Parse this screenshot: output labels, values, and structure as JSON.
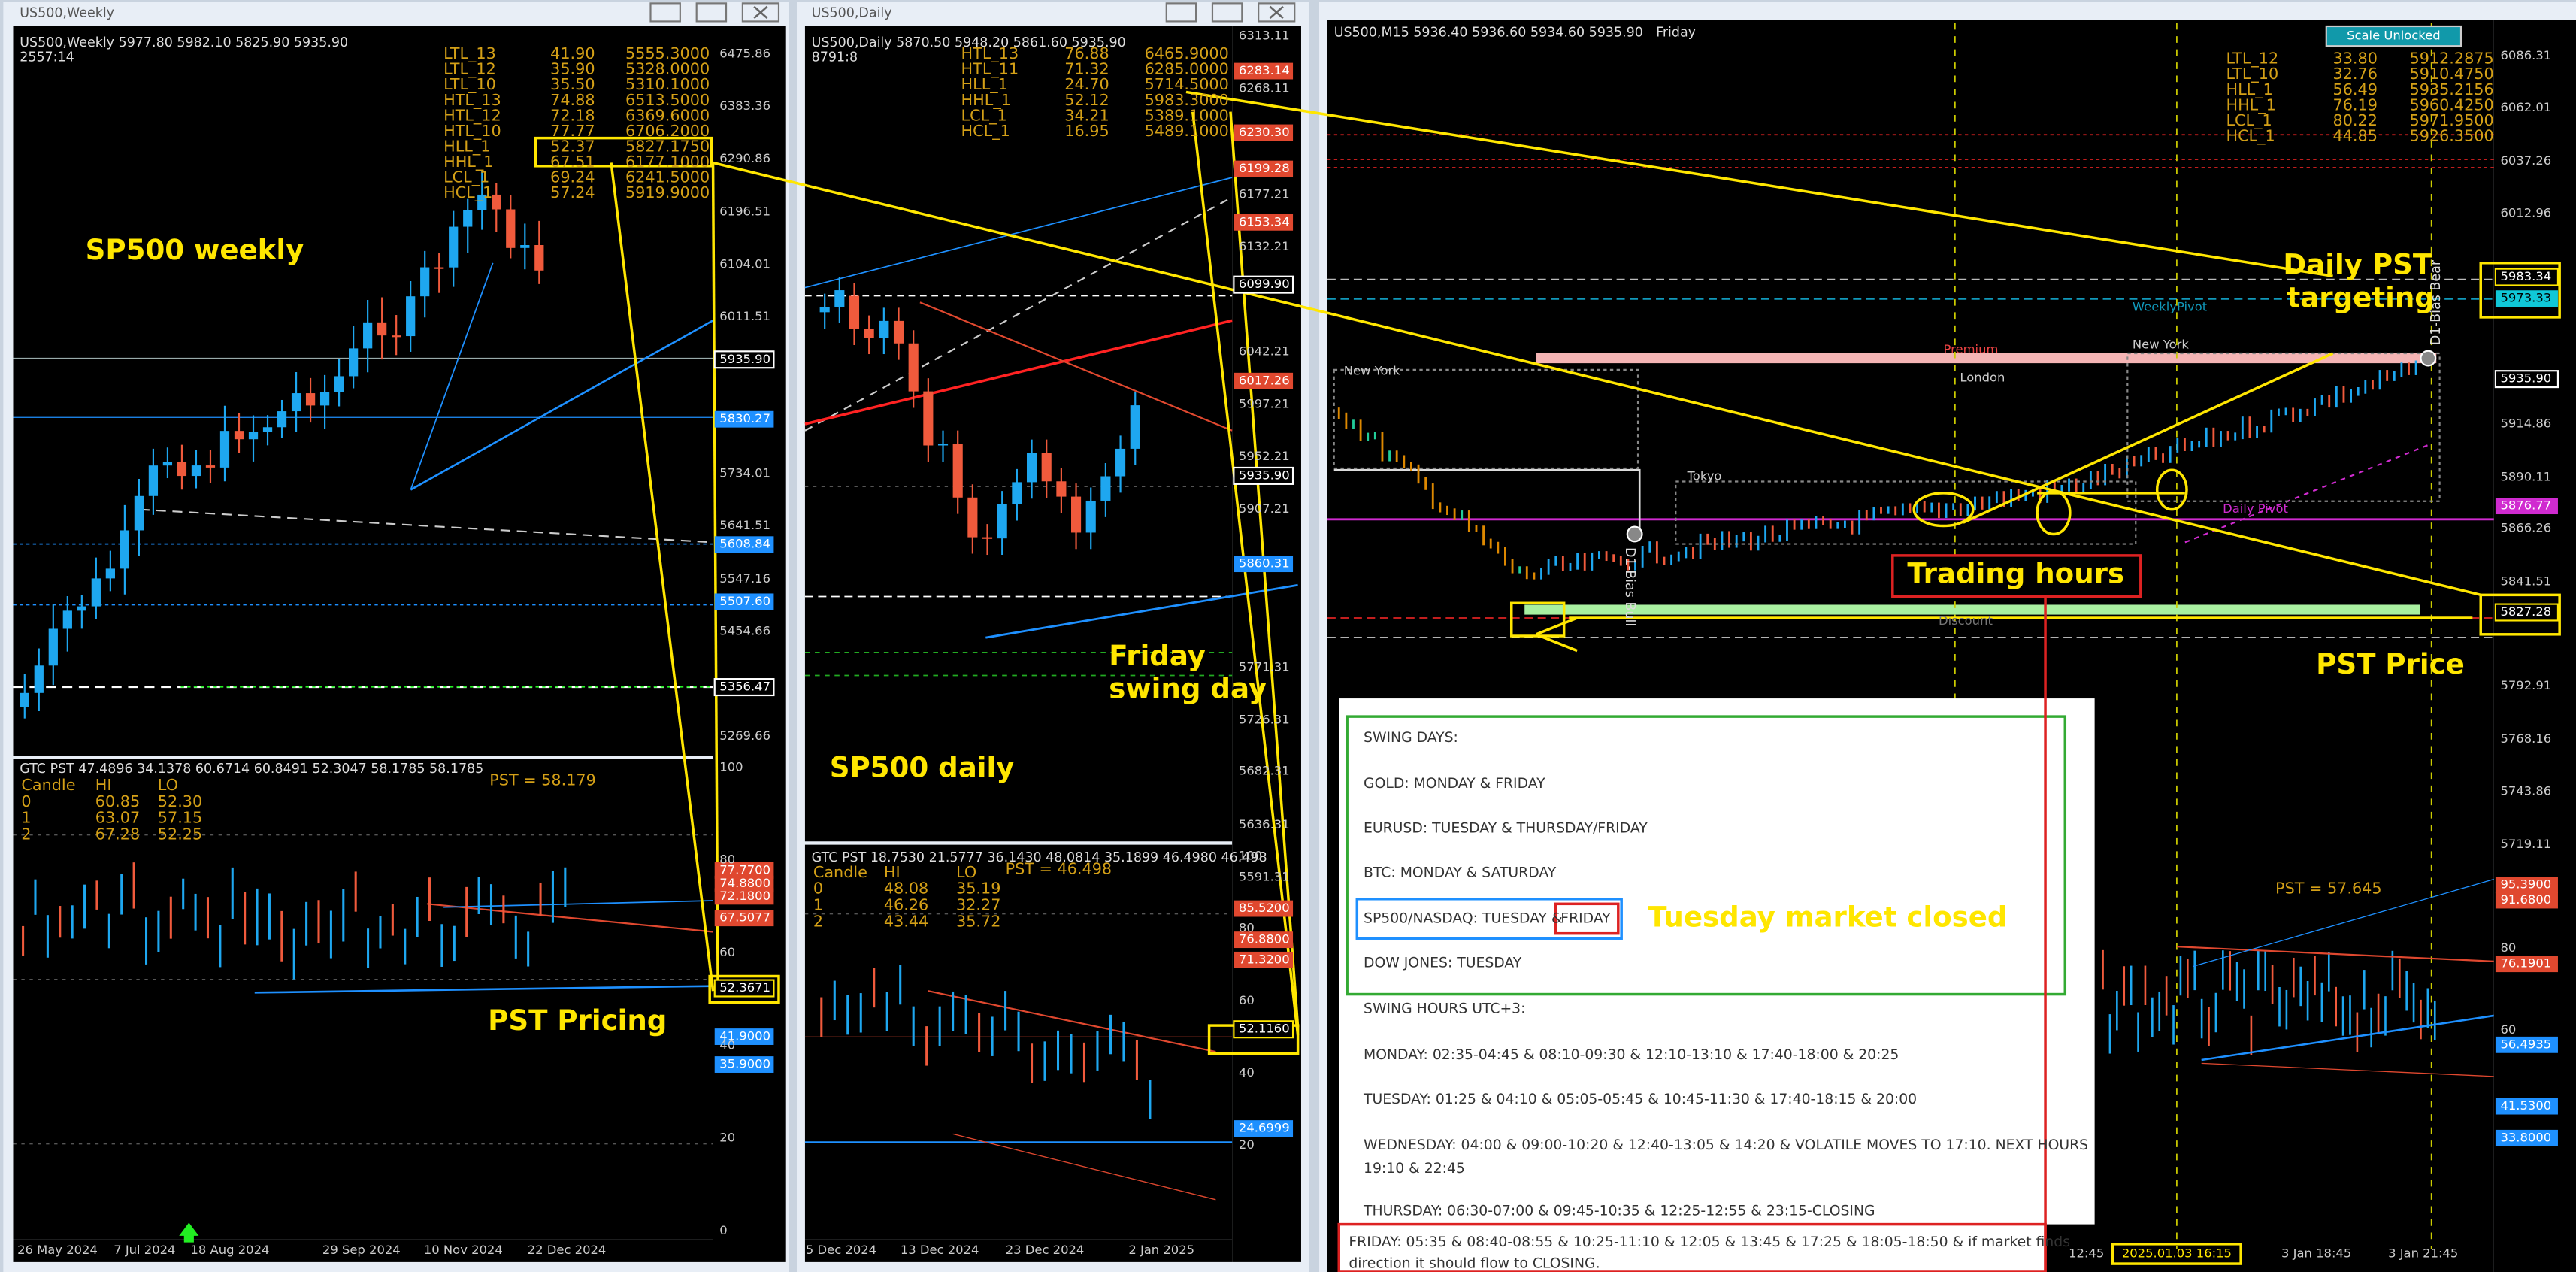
{
  "weekly": {
    "window_title": "US500,Weekly",
    "header": "US500,Weekly 5977.80 5982.10 5825.90 5935.90",
    "timer": "2557:14",
    "levels": [
      [
        "LTL_13",
        "41.90",
        "5555.3000"
      ],
      [
        "LTL_12",
        "35.90",
        "5328.0000"
      ],
      [
        "LTL_10",
        "35.50",
        "5310.1000"
      ],
      [
        "HTL_13",
        "74.88",
        "6513.5000"
      ],
      [
        "HTL_12",
        "72.18",
        "6369.6000"
      ],
      [
        "HTL_10",
        "77.77",
        "6706.2000"
      ],
      [
        "HLL_1",
        "52.37",
        "5827.1750"
      ],
      [
        "HHL_1",
        "67.51",
        "6177.1000"
      ],
      [
        "LCL_1",
        "69.24",
        "6241.5000"
      ],
      [
        "HCL_1",
        "57.24",
        "5919.9000"
      ]
    ],
    "label": "SP500 weekly",
    "price_axis": [
      {
        "text": "6475.86",
        "style": "plain"
      },
      {
        "text": "6383.36",
        "style": "plain"
      },
      {
        "text": "6290.86",
        "style": "plain"
      },
      {
        "text": "6196.51",
        "style": "plain"
      },
      {
        "text": "6104.01",
        "style": "plain"
      },
      {
        "text": "6011.51",
        "style": "plain"
      },
      {
        "text": "5935.90",
        "style": "box"
      },
      {
        "text": "5830.27",
        "style": "blue"
      },
      {
        "text": "5734.01",
        "style": "plain"
      },
      {
        "text": "5641.51",
        "style": "plain"
      },
      {
        "text": "5608.84",
        "style": "blue"
      },
      {
        "text": "5547.16",
        "style": "plain"
      },
      {
        "text": "5507.60",
        "style": "blue"
      },
      {
        "text": "5454.66",
        "style": "plain"
      },
      {
        "text": "5356.47",
        "style": "box"
      },
      {
        "text": "5269.66",
        "style": "plain"
      }
    ],
    "indicator_header": "GTC PST 47.4896 34.1378 60.6714 60.8491 52.3047 58.1785 58.1785",
    "pst": "PST = 58.179",
    "candle_table": [
      [
        "Candle",
        "HI",
        "LO"
      ],
      [
        "0",
        "60.85",
        "52.30"
      ],
      [
        "1",
        "63.07",
        "57.15"
      ],
      [
        "2",
        "67.28",
        "52.25"
      ]
    ],
    "indicator_axis": [
      {
        "text": "100",
        "style": "plain"
      },
      {
        "text": "77.7700",
        "style": "red"
      },
      {
        "text": "74.8800",
        "style": "red"
      },
      {
        "text": "72.1800",
        "style": "red"
      },
      {
        "text": "67.5077",
        "style": "red"
      },
      {
        "text": "80",
        "style": "plain"
      },
      {
        "text": "60",
        "style": "plain"
      },
      {
        "text": "52.3671",
        "style": "yellow"
      },
      {
        "text": "41.9000",
        "style": "blue"
      },
      {
        "text": "35.9000",
        "style": "blue"
      },
      {
        "text": "40",
        "style": "plain"
      },
      {
        "text": "20",
        "style": "plain"
      },
      {
        "text": "0",
        "style": "plain"
      }
    ],
    "pst_label": "PST Pricing",
    "dates": [
      "26 May 2024",
      "7 Jul 2024",
      "18 Aug 2024",
      "29 Sep 2024",
      "10 Nov 2024",
      "22 Dec 2024"
    ]
  },
  "daily": {
    "window_title": "US500,Daily",
    "header": "US500,Daily 5870.50 5948.20 5861.60 5935.90",
    "timer": "8791:8",
    "levels": [
      [
        "HTL_13",
        "76.88",
        "6465.9000"
      ],
      [
        "HTL_11",
        "71.32",
        "6285.0000"
      ],
      [
        "HLL_1",
        "24.70",
        "5714.5000"
      ],
      [
        "HHL_1",
        "52.12",
        "5983.3000"
      ],
      [
        "LCL_1",
        "34.21",
        "5389.1000"
      ],
      [
        "HCL_1",
        "16.95",
        "5489.1000"
      ]
    ],
    "label": "SP500 daily",
    "swing_label": [
      "Friday",
      "swing day"
    ],
    "price_axis": [
      {
        "text": "6313.11",
        "style": "plain"
      },
      {
        "text": "6283.14",
        "style": "red"
      },
      {
        "text": "6268.11",
        "style": "plain"
      },
      {
        "text": "6230.30",
        "style": "red"
      },
      {
        "text": "6199.28",
        "style": "red"
      },
      {
        "text": "6177.21",
        "style": "plain"
      },
      {
        "text": "6153.34",
        "style": "red"
      },
      {
        "text": "6132.21",
        "style": "plain"
      },
      {
        "text": "6099.90",
        "style": "box"
      },
      {
        "text": "6042.21",
        "style": "plain"
      },
      {
        "text": "6017.26",
        "style": "red"
      },
      {
        "text": "5997.21",
        "style": "plain"
      },
      {
        "text": "5952.21",
        "style": "plain"
      },
      {
        "text": "5935.90",
        "style": "box"
      },
      {
        "text": "5907.21",
        "style": "plain"
      },
      {
        "text": "5860.31",
        "style": "blue"
      },
      {
        "text": "5771.31",
        "style": "plain"
      },
      {
        "text": "5726.31",
        "style": "plain"
      },
      {
        "text": "5682.31",
        "style": "plain"
      },
      {
        "text": "5636.31",
        "style": "plain"
      },
      {
        "text": "5591.31",
        "style": "plain"
      }
    ],
    "indicator_header": "GTC PST 18.7530 21.5777 36.1430 48.0814 35.1899 46.4980 46.498",
    "pst": "PST = 46.498",
    "candle_table": [
      [
        "Candle",
        "HI",
        "LO"
      ],
      [
        "0",
        "48.08",
        "35.19"
      ],
      [
        "1",
        "46.26",
        "32.27"
      ],
      [
        "2",
        "43.44",
        "35.72"
      ]
    ],
    "indicator_axis": [
      {
        "text": "100",
        "style": "plain"
      },
      {
        "text": "85.5200",
        "style": "red"
      },
      {
        "text": "80",
        "style": "plain"
      },
      {
        "text": "76.8800",
        "style": "red"
      },
      {
        "text": "71.3200",
        "style": "red"
      },
      {
        "text": "60",
        "style": "plain"
      },
      {
        "text": "52.1160",
        "style": "yellow"
      },
      {
        "text": "40",
        "style": "plain"
      },
      {
        "text": "24.6999",
        "style": "blue"
      },
      {
        "text": "20",
        "style": "plain"
      }
    ],
    "dates": [
      "5 Dec 2024",
      "13 Dec 2024",
      "23 Dec 2024",
      "2 Jan 2025"
    ]
  },
  "m15": {
    "header": "US500,M15 5936.40 5936.60 5934.60 5935.90",
    "day": "Friday",
    "button": "Scale Unlocked",
    "levels": [
      [
        "LTL_12",
        "33.80",
        "5912.2875"
      ],
      [
        "LTL_10",
        "32.76",
        "5910.4750"
      ],
      [
        "HLL_1",
        "56.49",
        "5935.2156"
      ],
      [
        "HHL_1",
        "76.19",
        "5960.4250"
      ],
      [
        "LCL_1",
        "80.22",
        "5971.9500"
      ],
      [
        "HCL_1",
        "44.85",
        "5926.3500"
      ]
    ],
    "price_axis": [
      {
        "text": "6086.31",
        "style": "plain"
      },
      {
        "text": "6062.01",
        "style": "plain"
      },
      {
        "text": "6037.26",
        "style": "plain"
      },
      {
        "text": "6012.96",
        "style": "plain"
      },
      {
        "text": "5983.34",
        "style": "yellow"
      },
      {
        "text": "5973.33",
        "style": "cyan"
      },
      {
        "text": "5935.90",
        "style": "box"
      },
      {
        "text": "5914.86",
        "style": "plain"
      },
      {
        "text": "5890.11",
        "style": "plain"
      },
      {
        "text": "5876.77",
        "style": "magenta"
      },
      {
        "text": "5866.26",
        "style": "plain"
      },
      {
        "text": "5841.51",
        "style": "plain"
      },
      {
        "text": "5827.28",
        "style": "yellow"
      },
      {
        "text": "5792.91",
        "style": "plain"
      },
      {
        "text": "5768.16",
        "style": "plain"
      },
      {
        "text": "5743.86",
        "style": "plain"
      },
      {
        "text": "5719.11",
        "style": "plain"
      }
    ],
    "indicator_axis": [
      {
        "text": "95.3900",
        "style": "red"
      },
      {
        "text": "91.6800",
        "style": "red"
      },
      {
        "text": "80",
        "style": "plain"
      },
      {
        "text": "76.1901",
        "style": "red"
      },
      {
        "text": "60",
        "style": "plain"
      },
      {
        "text": "56.4935",
        "style": "blue"
      },
      {
        "text": "41.5300",
        "style": "blue"
      },
      {
        "text": "33.8000",
        "style": "blue"
      }
    ],
    "pst": "PST = 57.645",
    "zones": {
      "weekly_pivot": "WeeklyPivot",
      "new_york": "New York",
      "london": "London",
      "tokyo": "Tokyo",
      "daily_pivot": "Daily Pivot",
      "premium": "Premium",
      "discount": "Discount",
      "bias_bear": "D1-Bias Bear",
      "bias_bull": "D1-Bias Bull"
    },
    "dates": [
      "12:45",
      "2025.01.03 16:15",
      "3 Jan 18:45",
      "3 Jan 21:45"
    ],
    "annotations": {
      "targeting": [
        "Daily PST",
        "targeting"
      ],
      "trading_hours": "Trading hours",
      "pst_price": "PST Price",
      "tuesday": "Tuesday market closed"
    }
  },
  "note": {
    "swing_days": "SWING DAYS:",
    "gold": "GOLD: MONDAY & FRIDAY",
    "eurusd": "EURUSD: TUESDAY & THURSDAY/FRIDAY",
    "btc": "BTC: MONDAY & SATURDAY",
    "sp500": "SP500/NASDAQ: TUESDAY &",
    "sp500_friday": "FRIDAY",
    "dow": "DOW JONES: TUESDAY",
    "swing_hours": "SWING HOURS UTC+3:",
    "monday": "MONDAY: 02:35-04:45 & 08:10-09:30 & 12:10-13:10 & 17:40-18:00 & 20:25",
    "tuesday": "TUESDAY: 01:25 & 04:10 & 05:05-05:45 & 10:45-11:30 & 17:40-18:15 & 20:00",
    "wednesday": [
      "WEDNESDAY: 04:00 & 09:00-10:20 & 12:40-13:05 & 14:20 & VOLATILE MOVES TO 17:10. NEXT HOURS",
      "19:10 & 22:45"
    ],
    "thursday": "THURSDAY: 06:30-07:00 & 09:45-10:35 & 12:25-12:55 & 23:15-CLOSING",
    "friday": [
      "FRIDAY: 05:35 & 08:40-08:55 & 10:25-11:10 & 12:05 & 13:45 & 17:25 & 18:05-18:50 & if market finds",
      "direction it should flow to CLOSING."
    ]
  }
}
